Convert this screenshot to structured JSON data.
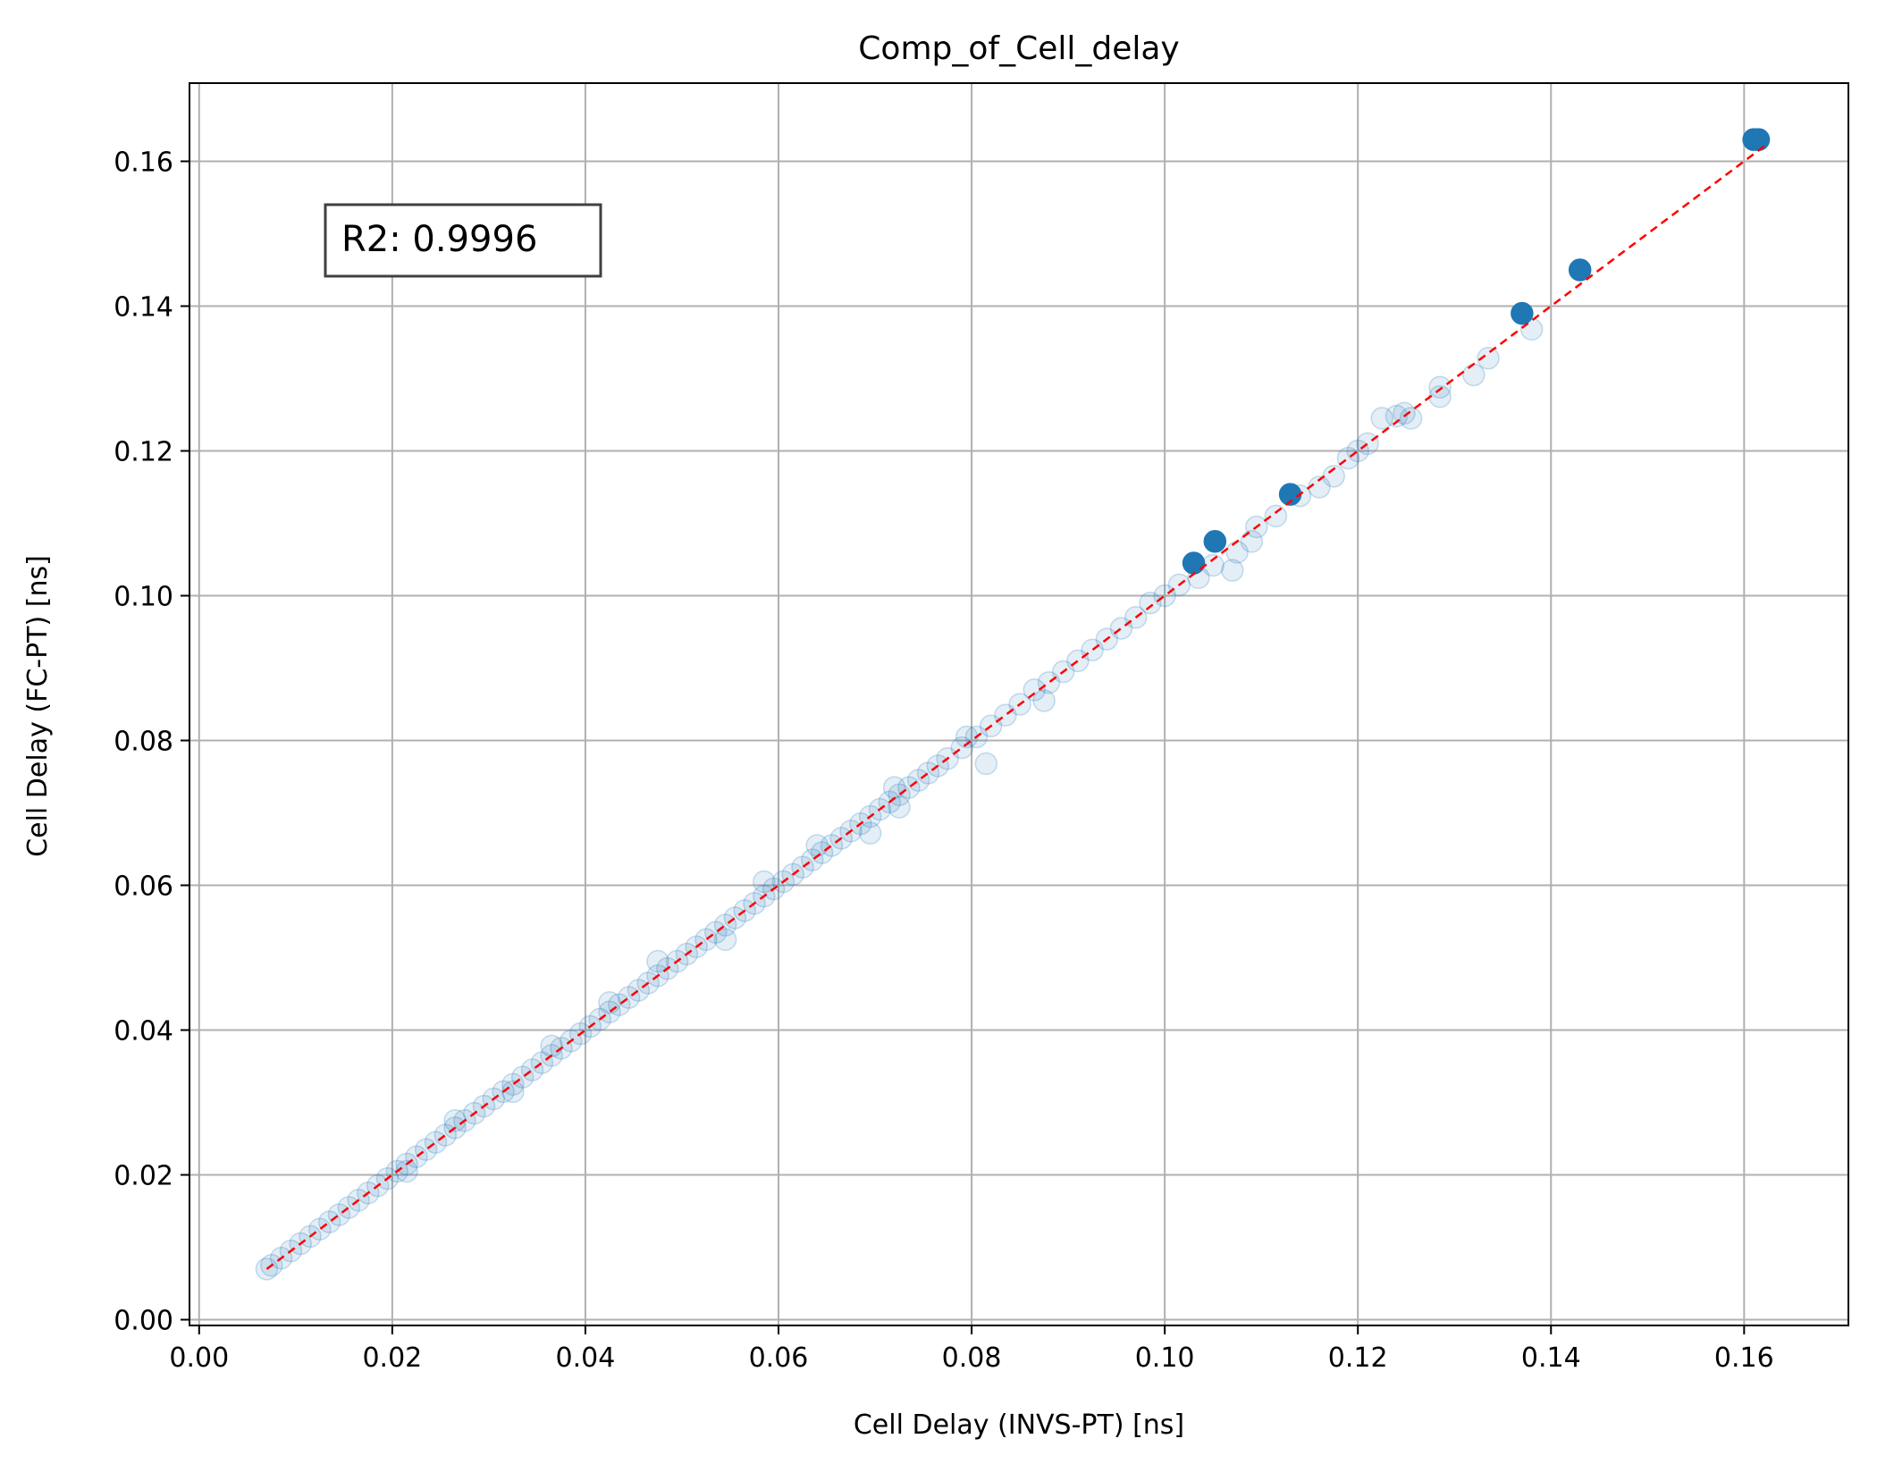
{
  "chart_data": {
    "type": "scatter",
    "title": "Comp_of_Cell_delay",
    "xlabel": "Cell Delay (INVS-PT) [ns]",
    "ylabel": "Cell Delay (FC-PT) [ns]",
    "xlim": [
      -0.001,
      0.1708
    ],
    "ylim": [
      -0.0008,
      0.1708
    ],
    "x_ticks": [
      "0.00",
      "0.02",
      "0.04",
      "0.06",
      "0.08",
      "0.10",
      "0.12",
      "0.14",
      "0.16"
    ],
    "y_ticks": [
      "0.00",
      "0.02",
      "0.04",
      "0.06",
      "0.08",
      "0.10",
      "0.12",
      "0.14",
      "0.16"
    ],
    "grid": true,
    "annotation": "R2: 0.9996",
    "colors": {
      "points": "#1f77b4",
      "reference_line": "#ff0000",
      "grid": "#b0b0b0"
    },
    "reference_line": {
      "style": "dashed",
      "x": [
        0.007,
        0.1625
      ],
      "y": [
        0.007,
        0.1625
      ]
    },
    "series": [
      {
        "values": [
          [
            0.161,
            0.163
          ],
          [
            0.1615,
            0.163
          ],
          [
            0.143,
            0.145
          ],
          [
            0.137,
            0.139
          ],
          [
            0.113,
            0.114
          ],
          [
            0.1052,
            0.1075
          ],
          [
            0.103,
            0.1045
          ]
        ],
        "opacity": 1.0
      },
      {
        "values": [
          [
            0.138,
            0.1368
          ],
          [
            0.1335,
            0.1328
          ],
          [
            0.132,
            0.1305
          ],
          [
            0.1285,
            0.1275
          ],
          [
            0.1285,
            0.1288
          ],
          [
            0.1255,
            0.1245
          ],
          [
            0.1248,
            0.1252
          ],
          [
            0.124,
            0.1248
          ],
          [
            0.1225,
            0.1245
          ],
          [
            0.121,
            0.121
          ],
          [
            0.12,
            0.12
          ],
          [
            0.119,
            0.119
          ],
          [
            0.1175,
            0.1165
          ],
          [
            0.116,
            0.115
          ],
          [
            0.114,
            0.1138
          ],
          [
            0.1115,
            0.111
          ],
          [
            0.1095,
            0.1095
          ],
          [
            0.109,
            0.1075
          ],
          [
            0.1075,
            0.106
          ],
          [
            0.107,
            0.1035
          ],
          [
            0.105,
            0.1042
          ],
          [
            0.1035,
            0.1025
          ],
          [
            0.1015,
            0.1015
          ],
          [
            0.1,
            0.1
          ],
          [
            0.0985,
            0.099
          ],
          [
            0.097,
            0.097
          ],
          [
            0.0955,
            0.0955
          ],
          [
            0.094,
            0.094
          ],
          [
            0.0925,
            0.0925
          ],
          [
            0.091,
            0.091
          ],
          [
            0.0895,
            0.0895
          ],
          [
            0.088,
            0.088
          ],
          [
            0.0865,
            0.087
          ],
          [
            0.0875,
            0.0855
          ],
          [
            0.085,
            0.085
          ],
          [
            0.0835,
            0.0835
          ],
          [
            0.082,
            0.082
          ],
          [
            0.0805,
            0.0805
          ],
          [
            0.079,
            0.079
          ],
          [
            0.0775,
            0.0775
          ],
          [
            0.0765,
            0.0765
          ],
          [
            0.0755,
            0.0755
          ],
          [
            0.0745,
            0.0745
          ],
          [
            0.0735,
            0.0735
          ],
          [
            0.0725,
            0.0725
          ],
          [
            0.0715,
            0.0715
          ],
          [
            0.0705,
            0.0705
          ],
          [
            0.0695,
            0.0695
          ],
          [
            0.0685,
            0.0685
          ],
          [
            0.0675,
            0.0675
          ],
          [
            0.0665,
            0.0665
          ],
          [
            0.0655,
            0.0655
          ],
          [
            0.0645,
            0.0645
          ],
          [
            0.0635,
            0.0635
          ],
          [
            0.0625,
            0.0625
          ],
          [
            0.0615,
            0.0615
          ],
          [
            0.0605,
            0.0605
          ],
          [
            0.0595,
            0.0595
          ],
          [
            0.0585,
            0.0585
          ],
          [
            0.0575,
            0.0575
          ],
          [
            0.0565,
            0.0565
          ],
          [
            0.0555,
            0.0555
          ],
          [
            0.0545,
            0.0545
          ],
          [
            0.0535,
            0.0535
          ],
          [
            0.0525,
            0.0525
          ],
          [
            0.0515,
            0.0515
          ],
          [
            0.0505,
            0.0505
          ],
          [
            0.0495,
            0.0495
          ],
          [
            0.0485,
            0.0485
          ],
          [
            0.0475,
            0.0475
          ],
          [
            0.0465,
            0.0465
          ],
          [
            0.0455,
            0.0455
          ],
          [
            0.0445,
            0.0445
          ],
          [
            0.0435,
            0.0435
          ],
          [
            0.0425,
            0.0425
          ],
          [
            0.0415,
            0.0415
          ],
          [
            0.0405,
            0.0405
          ],
          [
            0.0395,
            0.0395
          ],
          [
            0.0385,
            0.0385
          ],
          [
            0.0375,
            0.0375
          ],
          [
            0.0365,
            0.0365
          ],
          [
            0.0355,
            0.0355
          ],
          [
            0.0345,
            0.0345
          ],
          [
            0.0335,
            0.0335
          ],
          [
            0.0325,
            0.0325
          ],
          [
            0.0315,
            0.0315
          ],
          [
            0.0305,
            0.0305
          ],
          [
            0.0295,
            0.0295
          ],
          [
            0.0285,
            0.0285
          ],
          [
            0.0275,
            0.0275
          ],
          [
            0.0265,
            0.0265
          ],
          [
            0.0255,
            0.0255
          ],
          [
            0.0245,
            0.0245
          ],
          [
            0.0235,
            0.0235
          ],
          [
            0.0225,
            0.0225
          ],
          [
            0.0215,
            0.0215
          ],
          [
            0.0205,
            0.0205
          ],
          [
            0.0195,
            0.0195
          ],
          [
            0.0185,
            0.0185
          ],
          [
            0.0175,
            0.0175
          ],
          [
            0.0165,
            0.0165
          ],
          [
            0.0155,
            0.0155
          ],
          [
            0.0145,
            0.0145
          ],
          [
            0.0135,
            0.0135
          ],
          [
            0.0125,
            0.0125
          ],
          [
            0.0115,
            0.0115
          ],
          [
            0.0105,
            0.0105
          ],
          [
            0.0095,
            0.0095
          ],
          [
            0.0085,
            0.0085
          ],
          [
            0.0075,
            0.0075
          ],
          [
            0.007,
            0.007
          ],
          [
            0.0815,
            0.0768
          ],
          [
            0.0475,
            0.0495
          ],
          [
            0.064,
            0.0655
          ],
          [
            0.0695,
            0.0672
          ],
          [
            0.072,
            0.0735
          ],
          [
            0.0795,
            0.0805
          ],
          [
            0.0725,
            0.0708
          ],
          [
            0.0545,
            0.0525
          ],
          [
            0.0585,
            0.0605
          ],
          [
            0.0425,
            0.0438
          ],
          [
            0.0325,
            0.0315
          ],
          [
            0.0365,
            0.0378
          ],
          [
            0.0215,
            0.0205
          ],
          [
            0.0265,
            0.0275
          ]
        ],
        "opacity": 0.12
      }
    ]
  }
}
